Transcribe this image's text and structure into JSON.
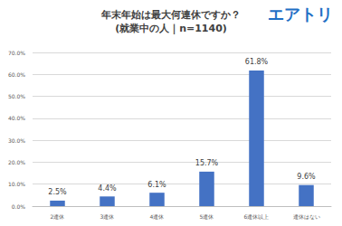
{
  "chart_data": {
    "type": "bar",
    "title": "年末年始は最大何連休ですか？",
    "subtitle": "(就業中の人｜n=1140)",
    "annotations": [
      "エアトリ"
    ],
    "categories": [
      "2連休",
      "3連休",
      "4連休",
      "5連休",
      "6連休以上",
      "連休はない"
    ],
    "values": [
      2.5,
      4.4,
      6.1,
      15.7,
      61.8,
      9.6
    ],
    "value_labels": [
      "2.5%",
      "4.4%",
      "6.1%",
      "15.7%",
      "61.8%",
      "9.6%"
    ],
    "color": "#4472c4",
    "ylim": [
      0,
      70
    ],
    "yticks": [
      {
        "value": 0,
        "label": "0.0%"
      },
      {
        "value": 10,
        "label": "10.0%"
      },
      {
        "value": 20,
        "label": "20.0%"
      },
      {
        "value": 30,
        "label": "30.0%"
      },
      {
        "value": 40,
        "label": "40.0%"
      },
      {
        "value": 50,
        "label": "50.0%"
      },
      {
        "value": 60,
        "label": "60.0%"
      },
      {
        "value": 70,
        "label": "70.0%"
      }
    ],
    "grid": true,
    "data_labels": true
  }
}
